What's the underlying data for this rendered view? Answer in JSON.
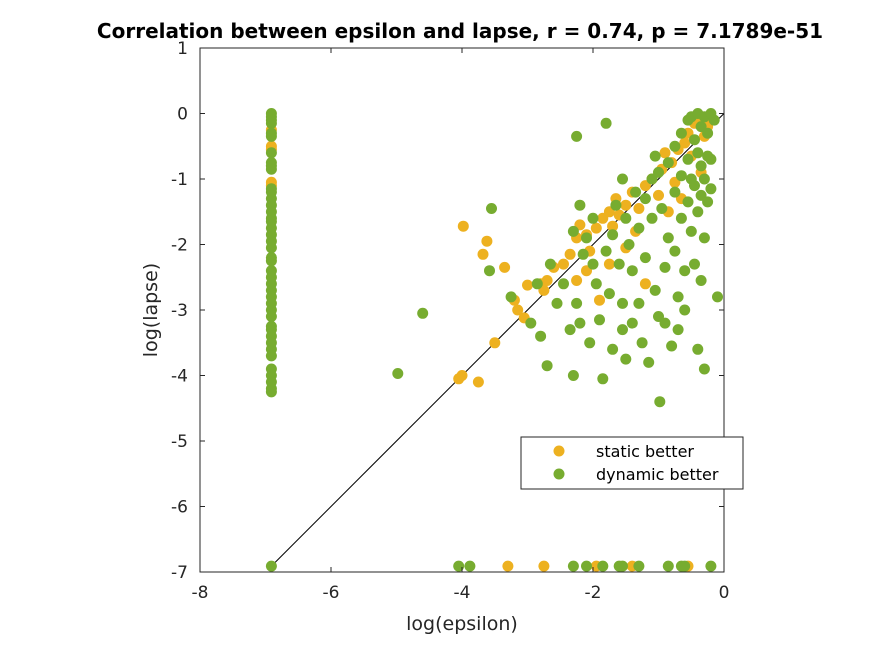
{
  "chart_data": {
    "type": "scatter",
    "title": "Correlation between epsilon and lapse, r = 0.74, p = 7.1789e-51",
    "xlabel": "log(epsilon)",
    "ylabel": "log(lapse)",
    "xlim": [
      -8,
      0
    ],
    "ylim": [
      -7,
      1
    ],
    "xticks": [
      -8,
      -6,
      -4,
      -2,
      0
    ],
    "yticks": [
      1,
      0,
      -1,
      -2,
      -3,
      -4,
      -5,
      -6,
      -7
    ],
    "xtick_labels": [
      "-8",
      "-6",
      "-4",
      "-2",
      "0"
    ],
    "ytick_labels": [
      "1",
      "0",
      "-1",
      "-2",
      "-3",
      "-4",
      "-5",
      "-6",
      "-7"
    ],
    "grid": false,
    "legend_position": "lower-right",
    "reference_line": {
      "x": [
        -6.91,
        0
      ],
      "y": [
        -6.91,
        0
      ],
      "color": "#000000"
    },
    "series": [
      {
        "name": "static better",
        "color": "#EDB120",
        "points": [
          [
            -6.91,
            -0.25
          ],
          [
            -6.91,
            -0.5
          ],
          [
            -6.91,
            -0.55
          ],
          [
            -6.91,
            -1.05
          ],
          [
            -6.91,
            -1.1
          ],
          [
            -3.98,
            -1.72
          ],
          [
            -3.62,
            -1.95
          ],
          [
            -3.68,
            -2.15
          ],
          [
            -3.35,
            -2.35
          ],
          [
            -3.0,
            -2.62
          ],
          [
            -3.2,
            -2.85
          ],
          [
            -3.15,
            -3.0
          ],
          [
            -3.05,
            -3.12
          ],
          [
            -3.5,
            -3.5
          ],
          [
            -4.0,
            -4.0
          ],
          [
            -4.05,
            -4.05
          ],
          [
            -3.75,
            -4.1
          ],
          [
            -2.75,
            -2.7
          ],
          [
            -2.7,
            -2.55
          ],
          [
            -2.6,
            -2.35
          ],
          [
            -2.45,
            -2.3
          ],
          [
            -2.35,
            -2.15
          ],
          [
            -2.25,
            -1.9
          ],
          [
            -2.2,
            -1.7
          ],
          [
            -2.1,
            -1.85
          ],
          [
            -2.05,
            -2.1
          ],
          [
            -1.95,
            -1.75
          ],
          [
            -1.85,
            -1.6
          ],
          [
            -1.75,
            -1.5
          ],
          [
            -1.7,
            -1.72
          ],
          [
            -1.65,
            -1.3
          ],
          [
            -1.6,
            -1.55
          ],
          [
            -1.5,
            -1.4
          ],
          [
            -1.4,
            -1.2
          ],
          [
            -1.3,
            -1.45
          ],
          [
            -1.2,
            -1.1
          ],
          [
            -1.1,
            -1.0
          ],
          [
            -1.0,
            -1.25
          ],
          [
            -0.95,
            -0.85
          ],
          [
            -0.9,
            -0.6
          ],
          [
            -0.8,
            -0.75
          ],
          [
            -0.75,
            -1.05
          ],
          [
            -0.7,
            -0.55
          ],
          [
            -0.6,
            -0.45
          ],
          [
            -0.55,
            -0.3
          ],
          [
            -0.5,
            -0.65
          ],
          [
            -0.45,
            -0.15
          ],
          [
            -0.4,
            -0.05
          ],
          [
            -0.3,
            -0.35
          ],
          [
            -0.25,
            -0.2
          ],
          [
            -0.2,
            -0.1
          ],
          [
            -1.9,
            -2.85
          ],
          [
            -2.1,
            -2.4
          ],
          [
            -2.25,
            -2.55
          ],
          [
            -1.75,
            -2.3
          ],
          [
            -1.2,
            -2.6
          ],
          [
            -1.5,
            -2.05
          ],
          [
            -0.65,
            -1.3
          ],
          [
            -0.35,
            -0.9
          ],
          [
            -0.85,
            -1.5
          ],
          [
            -1.35,
            -1.8
          ],
          [
            -2.8,
            -2.6
          ],
          [
            -3.3,
            -6.91
          ],
          [
            -2.75,
            -6.91
          ],
          [
            -1.95,
            -6.91
          ],
          [
            -1.4,
            -6.91
          ],
          [
            -0.55,
            -6.91
          ]
        ]
      },
      {
        "name": "dynamic better",
        "color": "#77AC30",
        "points": [
          [
            -6.91,
            0.0
          ],
          [
            -6.91,
            -0.05
          ],
          [
            -6.91,
            -0.1
          ],
          [
            -6.91,
            -0.15
          ],
          [
            -6.91,
            -0.3
          ],
          [
            -6.91,
            -0.35
          ],
          [
            -6.91,
            -0.6
          ],
          [
            -6.91,
            -0.75
          ],
          [
            -6.91,
            -0.8
          ],
          [
            -6.91,
            -0.85
          ],
          [
            -6.91,
            -1.15
          ],
          [
            -6.91,
            -1.2
          ],
          [
            -6.91,
            -1.3
          ],
          [
            -6.91,
            -1.4
          ],
          [
            -6.91,
            -1.5
          ],
          [
            -6.91,
            -1.6
          ],
          [
            -6.91,
            -1.65
          ],
          [
            -6.91,
            -1.75
          ],
          [
            -6.91,
            -1.85
          ],
          [
            -6.91,
            -1.95
          ],
          [
            -6.91,
            -2.05
          ],
          [
            -6.91,
            -2.2
          ],
          [
            -6.91,
            -2.25
          ],
          [
            -6.91,
            -2.4
          ],
          [
            -6.91,
            -2.5
          ],
          [
            -6.91,
            -2.6
          ],
          [
            -6.91,
            -2.7
          ],
          [
            -6.91,
            -2.8
          ],
          [
            -6.91,
            -2.9
          ],
          [
            -6.91,
            -3.0
          ],
          [
            -6.91,
            -3.1
          ],
          [
            -6.91,
            -3.25
          ],
          [
            -6.91,
            -3.3
          ],
          [
            -6.91,
            -3.4
          ],
          [
            -6.91,
            -3.5
          ],
          [
            -6.91,
            -3.6
          ],
          [
            -6.91,
            -3.7
          ],
          [
            -6.91,
            -3.9
          ],
          [
            -6.91,
            -4.0
          ],
          [
            -6.91,
            -4.1
          ],
          [
            -6.91,
            -4.2
          ],
          [
            -6.91,
            -4.25
          ],
          [
            -6.91,
            -6.91
          ],
          [
            -4.98,
            -3.97
          ],
          [
            -4.6,
            -3.05
          ],
          [
            -3.55,
            -1.45
          ],
          [
            -3.58,
            -2.4
          ],
          [
            -3.25,
            -2.8
          ],
          [
            -2.95,
            -3.2
          ],
          [
            -2.85,
            -2.6
          ],
          [
            -2.8,
            -3.4
          ],
          [
            -2.7,
            -3.85
          ],
          [
            -2.65,
            -2.3
          ],
          [
            -2.55,
            -2.9
          ],
          [
            -2.45,
            -2.6
          ],
          [
            -2.35,
            -3.3
          ],
          [
            -2.3,
            -4.0
          ],
          [
            -2.25,
            -2.9
          ],
          [
            -2.2,
            -1.4
          ],
          [
            -2.2,
            -3.2
          ],
          [
            -2.15,
            -2.15
          ],
          [
            -2.1,
            -1.9
          ],
          [
            -2.05,
            -3.5
          ],
          [
            -2.0,
            -2.3
          ],
          [
            -1.95,
            -2.6
          ],
          [
            -1.9,
            -3.15
          ],
          [
            -1.85,
            -4.05
          ],
          [
            -1.8,
            -2.1
          ],
          [
            -1.75,
            -2.75
          ],
          [
            -1.7,
            -1.85
          ],
          [
            -1.7,
            -3.6
          ],
          [
            -1.65,
            -1.4
          ],
          [
            -1.6,
            -2.3
          ],
          [
            -1.55,
            -2.9
          ],
          [
            -1.55,
            -3.3
          ],
          [
            -1.5,
            -1.6
          ],
          [
            -1.5,
            -3.75
          ],
          [
            -1.45,
            -2.0
          ],
          [
            -1.4,
            -2.4
          ],
          [
            -1.4,
            -3.2
          ],
          [
            -1.35,
            -1.2
          ],
          [
            -1.3,
            -1.75
          ],
          [
            -1.3,
            -2.9
          ],
          [
            -1.25,
            -3.5
          ],
          [
            -1.2,
            -1.3
          ],
          [
            -1.2,
            -2.2
          ],
          [
            -1.15,
            -3.8
          ],
          [
            -1.1,
            -1.0
          ],
          [
            -1.1,
            -1.6
          ],
          [
            -1.05,
            -2.7
          ],
          [
            -1.0,
            -0.9
          ],
          [
            -1.0,
            -3.1
          ],
          [
            -0.98,
            -4.4
          ],
          [
            -0.95,
            -1.45
          ],
          [
            -0.9,
            -2.35
          ],
          [
            -0.9,
            -3.2
          ],
          [
            -0.85,
            -0.75
          ],
          [
            -0.85,
            -1.9
          ],
          [
            -0.8,
            -3.55
          ],
          [
            -0.75,
            -0.5
          ],
          [
            -0.75,
            -1.2
          ],
          [
            -0.75,
            -2.1
          ],
          [
            -0.7,
            -2.8
          ],
          [
            -0.7,
            -3.3
          ],
          [
            -0.65,
            -0.3
          ],
          [
            -0.65,
            -0.95
          ],
          [
            -0.65,
            -1.6
          ],
          [
            -0.6,
            -2.4
          ],
          [
            -0.6,
            -3.0
          ],
          [
            -0.55,
            -0.1
          ],
          [
            -0.55,
            -0.7
          ],
          [
            -0.55,
            -1.35
          ],
          [
            -0.5,
            -0.05
          ],
          [
            -0.5,
            -1.0
          ],
          [
            -0.5,
            -1.8
          ],
          [
            -0.45,
            -0.4
          ],
          [
            -0.45,
            -1.1
          ],
          [
            -0.45,
            -2.3
          ],
          [
            -0.4,
            0.0
          ],
          [
            -0.4,
            -0.6
          ],
          [
            -0.4,
            -1.5
          ],
          [
            -0.4,
            -3.6
          ],
          [
            -0.35,
            -0.2
          ],
          [
            -0.35,
            -0.8
          ],
          [
            -0.35,
            -1.25
          ],
          [
            -0.35,
            -2.55
          ],
          [
            -0.3,
            -0.05
          ],
          [
            -0.3,
            -1.0
          ],
          [
            -0.3,
            -1.9
          ],
          [
            -0.3,
            -3.9
          ],
          [
            -0.25,
            -0.3
          ],
          [
            -0.25,
            -0.65
          ],
          [
            -0.25,
            -1.35
          ],
          [
            -0.2,
            0.0
          ],
          [
            -0.2,
            -0.7
          ],
          [
            -0.2,
            -1.15
          ],
          [
            -0.1,
            -2.8
          ],
          [
            -2.25,
            -0.35
          ],
          [
            -1.8,
            -0.15
          ],
          [
            -1.05,
            -0.65
          ],
          [
            -1.55,
            -1.0
          ],
          [
            -2.3,
            -1.8
          ],
          [
            -2.0,
            -1.6
          ],
          [
            -0.15,
            -0.1
          ],
          [
            -4.05,
            -6.91
          ],
          [
            -3.88,
            -6.91
          ],
          [
            -2.3,
            -6.91
          ],
          [
            -2.1,
            -6.91
          ],
          [
            -1.85,
            -6.91
          ],
          [
            -1.6,
            -6.91
          ],
          [
            -1.55,
            -6.91
          ],
          [
            -1.3,
            -6.91
          ],
          [
            -0.85,
            -6.91
          ],
          [
            -0.65,
            -6.91
          ],
          [
            -0.6,
            -6.91
          ],
          [
            -0.2,
            -6.91
          ]
        ]
      }
    ]
  }
}
